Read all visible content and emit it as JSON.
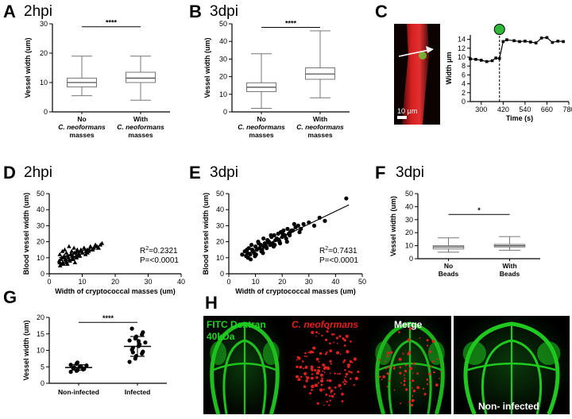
{
  "colors": {
    "fitc_green": "#21d321",
    "neoformans_red": "#e0201f",
    "marker_green": "#2fb837"
  },
  "panels": {
    "A": {
      "letter": "A",
      "title": "2hpi"
    },
    "B": {
      "letter": "B",
      "title": "3dpi"
    },
    "C": {
      "letter": "C",
      "scale_label": "10 μm",
      "time_label": "Time (s)",
      "width_label": "Width μm"
    },
    "D": {
      "letter": "D",
      "title": "2hpi",
      "r2": "=0.2321",
      "p": "P=<0.0001"
    },
    "E": {
      "letter": "E",
      "title": "3dpi",
      "r2": "=0.7431",
      "p": "P=<0.0001"
    },
    "F": {
      "letter": "F",
      "title": "3dpi"
    },
    "G": {
      "letter": "G"
    },
    "H": {
      "letter": "H",
      "fitc": "FITC Dextran",
      "fitc2": "40kDa",
      "neo": "C. neoformans",
      "merge": "Merge",
      "noninf": "Non- infected"
    }
  },
  "chart_data": [
    {
      "id": "A",
      "type": "box",
      "ylabel": "Vessel width (um)",
      "ylim": [
        0,
        30
      ],
      "yticks": [
        0,
        10,
        20,
        30
      ],
      "categories": [
        {
          "l1": "No",
          "l2": "C. neoformans",
          "l3": "masses"
        },
        {
          "l1": "With",
          "l2": "C. neoformans",
          "l3": "masses"
        }
      ],
      "boxes": [
        {
          "min": 5.5,
          "q1": 8.5,
          "median": 10,
          "q3": 11.5,
          "max": 19
        },
        {
          "min": 4,
          "q1": 10,
          "median": 11.5,
          "q3": 13.5,
          "max": 19
        }
      ],
      "significance": "****"
    },
    {
      "id": "B",
      "type": "box",
      "ylabel": "Vessel width (um)",
      "ylim": [
        0,
        50
      ],
      "yticks": [
        0,
        10,
        20,
        30,
        40,
        50
      ],
      "categories": [
        {
          "l1": "No",
          "l2": "C. neoformans",
          "l3": "masses"
        },
        {
          "l1": "With",
          "l2": "C. neoformans",
          "l3": "masses"
        }
      ],
      "boxes": [
        {
          "min": 2,
          "q1": 11.5,
          "median": 14,
          "q3": 16.5,
          "max": 33
        },
        {
          "min": 8,
          "q1": 18.5,
          "median": 21.5,
          "q3": 25,
          "max": 46
        }
      ],
      "significance": "****"
    },
    {
      "id": "C",
      "type": "line",
      "xlabel": "Time (s)",
      "ylabel": "Width μm",
      "xlim": [
        240,
        780
      ],
      "ylim": [
        0,
        15
      ],
      "xticks": [
        300,
        420,
        540,
        660,
        780
      ],
      "yticks": [
        0,
        2,
        4,
        6,
        8,
        10,
        12,
        14
      ],
      "marker_x": 400,
      "x": [
        240,
        270,
        300,
        330,
        360,
        380,
        400,
        420,
        440,
        480,
        510,
        540,
        570,
        600,
        630,
        660,
        690,
        720,
        750
      ],
      "y": [
        9.6,
        9.5,
        9.3,
        9.0,
        9.2,
        9.8,
        9.7,
        13.5,
        13.9,
        13.7,
        13.5,
        13.6,
        13.4,
        13.2,
        14.3,
        14.4,
        13.3,
        13.6,
        13.5
      ]
    },
    {
      "id": "D",
      "type": "scatter",
      "marker": "triangle",
      "xlabel": "Width of cryptococcal masses (um)",
      "ylabel": "Blood vessel width (um)",
      "xlim": [
        0,
        40
      ],
      "ylim": [
        0,
        50
      ],
      "xticks": [
        0,
        10,
        20,
        30,
        40
      ],
      "yticks": [
        0,
        10,
        20,
        30,
        40,
        50
      ],
      "fit": [
        [
          3,
          10
        ],
        [
          16,
          18
        ]
      ],
      "x": [
        3,
        3.2,
        3.5,
        3.8,
        4,
        4.2,
        4.5,
        4.7,
        5,
        5.2,
        5.5,
        5.8,
        6,
        6.2,
        6.5,
        6.8,
        7,
        7.2,
        7.5,
        7.8,
        8,
        8.2,
        8.5,
        8.8,
        9,
        9.5,
        10,
        10.5,
        11,
        11.5,
        12,
        12.5,
        13,
        13.5,
        14,
        14.5,
        15,
        15.5,
        16,
        3.3,
        4.1,
        5.1,
        6.1,
        7.1,
        8.1,
        9.1,
        10.1,
        11.1,
        12.1,
        3.6,
        4.6,
        5.6,
        6.6,
        7.6,
        8.6,
        9.6,
        10.6,
        4.3,
        5.3,
        6.3,
        7.3,
        8.3,
        9.3,
        3.1,
        4.9,
        6.9,
        11.6,
        13.2,
        14.8
      ],
      "y": [
        8,
        12,
        6,
        10,
        14,
        7,
        11,
        15,
        9,
        13,
        6,
        10,
        17,
        8,
        12,
        14,
        9,
        11,
        16,
        7,
        13,
        10,
        15,
        12,
        11,
        14,
        13,
        16,
        12,
        15,
        14,
        17,
        15,
        16,
        18,
        17,
        16,
        18,
        19,
        5,
        7,
        8,
        9,
        10,
        11,
        12,
        13,
        14,
        15,
        9,
        10,
        11,
        12,
        13,
        14,
        15,
        16,
        6,
        7,
        8,
        9,
        10,
        11,
        7,
        9,
        11,
        13,
        15,
        16
      ]
    },
    {
      "id": "E",
      "type": "scatter",
      "marker": "circle",
      "xlabel": "Width of cryptococcal masses (um)",
      "ylabel": "Blood vessel width (um)",
      "xlim": [
        0,
        50
      ],
      "ylim": [
        0,
        50
      ],
      "xticks": [
        0,
        10,
        20,
        30,
        40,
        50
      ],
      "yticks": [
        0,
        10,
        20,
        30,
        40,
        50
      ],
      "fit": [
        [
          5,
          11
        ],
        [
          45,
          43
        ]
      ],
      "x": [
        5,
        6,
        6.5,
        7,
        7.5,
        8,
        8.5,
        9,
        9.5,
        10,
        10.5,
        11,
        11.5,
        12,
        12.5,
        13,
        13.5,
        14,
        14.5,
        15,
        15.5,
        16,
        16.5,
        17,
        17.5,
        18,
        18.5,
        19,
        19.5,
        20,
        20.5,
        21,
        21.5,
        22,
        22.5,
        23,
        24,
        25,
        26,
        27,
        28,
        30,
        32,
        34,
        36,
        44,
        7.2,
        8.8,
        9.8,
        11.2,
        12.8,
        14.2,
        15.8,
        17.2,
        18.8,
        20.2,
        21.8,
        23.5,
        10.2,
        12.2,
        14.8,
        16.8,
        19.2,
        22.8,
        6.8,
        8.2,
        13.2,
        24.5,
        26.5
      ],
      "y": [
        12,
        14,
        11,
        13,
        16,
        12,
        18,
        14,
        13,
        17,
        15,
        20,
        16,
        18,
        15,
        22,
        19,
        17,
        21,
        20,
        18,
        23,
        19,
        24,
        21,
        22,
        25,
        20,
        26,
        23,
        27,
        24,
        22,
        28,
        25,
        26,
        27,
        29,
        30,
        28,
        31,
        32,
        30,
        35,
        33,
        47,
        10,
        15,
        11,
        19,
        13,
        16,
        24,
        18,
        21,
        25,
        20,
        27,
        12,
        14,
        20,
        17,
        19,
        24,
        15,
        9,
        17,
        31,
        26
      ]
    },
    {
      "id": "F",
      "type": "box",
      "ylabel": "Vessel width (um)",
      "ylim": [
        0,
        50
      ],
      "yticks": [
        0,
        10,
        20,
        30,
        40,
        50
      ],
      "categories": [
        {
          "l1": "No",
          "l2": "",
          "l3": "Beads"
        },
        {
          "l1": "With",
          "l2": "",
          "l3": "Beads"
        }
      ],
      "boxes": [
        {
          "min": 5,
          "q1": 7.5,
          "median": 9,
          "q3": 10,
          "max": 16
        },
        {
          "min": 6.5,
          "q1": 9,
          "median": 10,
          "q3": 11,
          "max": 17
        }
      ],
      "significance": "*"
    },
    {
      "id": "G",
      "type": "dot",
      "ylabel": "Vessel width (um)",
      "ylim": [
        0,
        20
      ],
      "yticks": [
        0,
        5,
        10,
        15,
        20
      ],
      "categories": [
        "Non-infected",
        "Infected"
      ],
      "groups": [
        {
          "mean": 4.8,
          "sd": 0.8,
          "values": [
            3.5,
            3.8,
            4.0,
            4.2,
            4.4,
            4.6,
            4.8,
            5.0,
            5.2,
            5.4,
            5.6,
            5.9,
            6.3,
            4.5
          ]
        },
        {
          "mean": 11.2,
          "sd": 3.0,
          "values": [
            6.5,
            7.5,
            8.3,
            9.0,
            9.6,
            10.2,
            10.8,
            11.3,
            11.8,
            12.4,
            13.0,
            13.6,
            14.2,
            14.8,
            15.5,
            16.6,
            9.4,
            12.8
          ]
        }
      ],
      "significance": "****"
    }
  ]
}
